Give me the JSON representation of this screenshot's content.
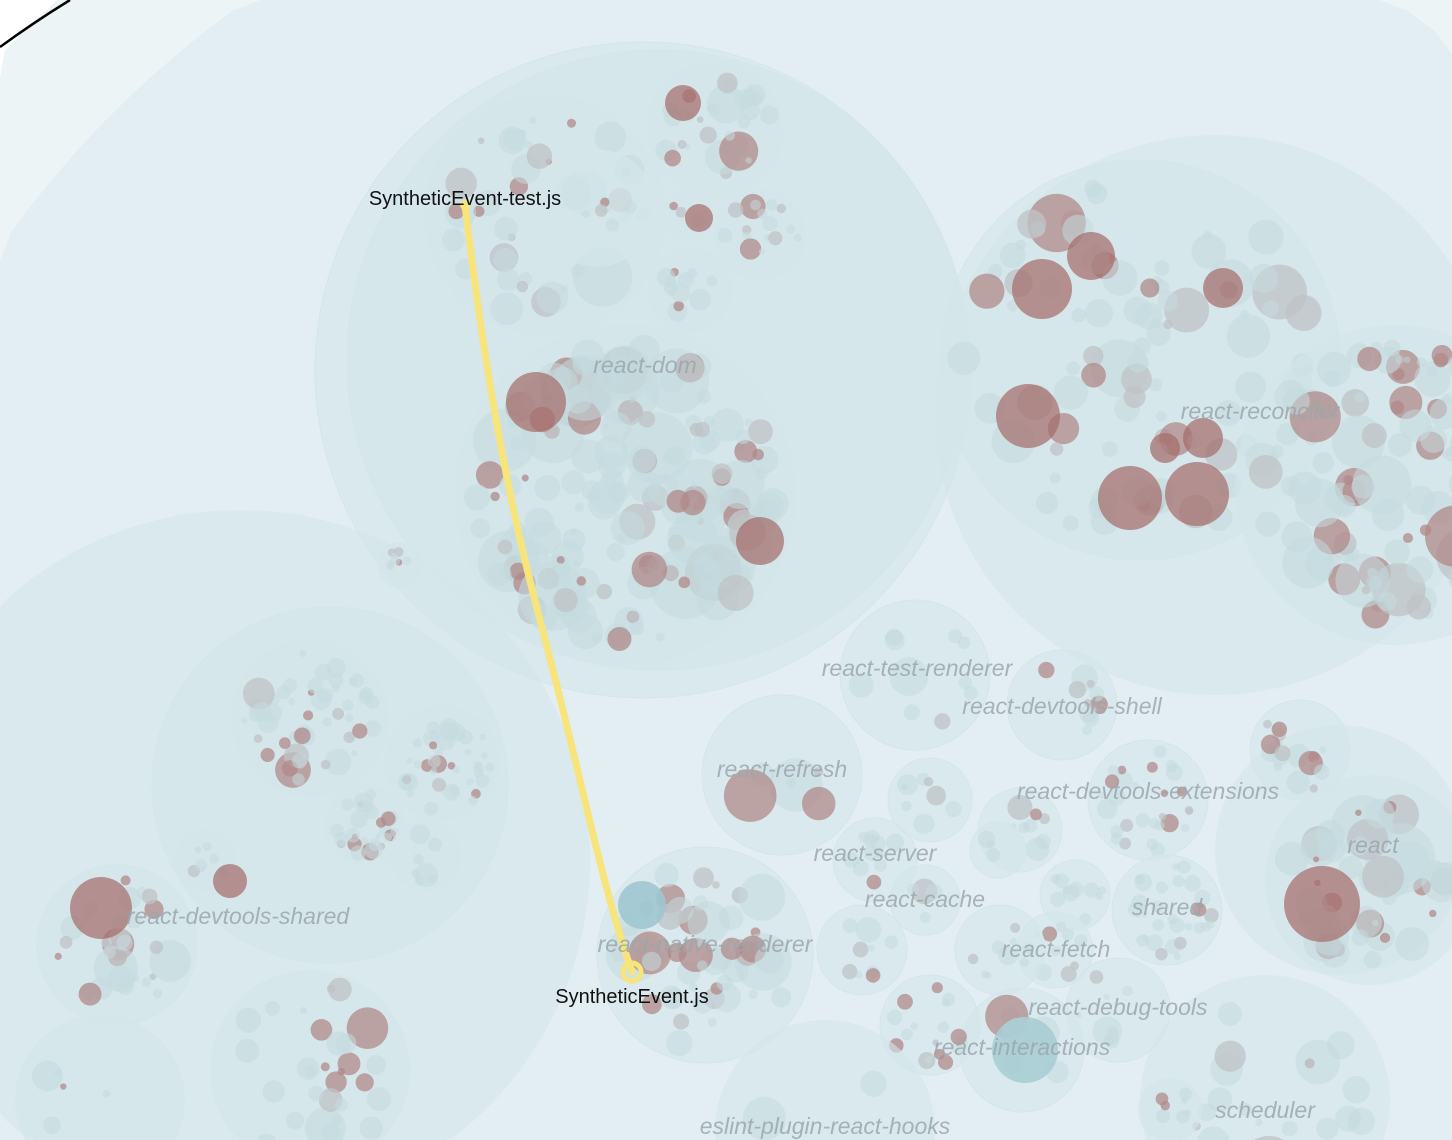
{
  "packages": [
    {
      "name": "react-dom"
    },
    {
      "name": "react-reconciler"
    },
    {
      "name": "react-test-renderer"
    },
    {
      "name": "react-devtools-shell"
    },
    {
      "name": "react-refresh"
    },
    {
      "name": "react-devtools-extensions"
    },
    {
      "name": "react"
    },
    {
      "name": "react-server"
    },
    {
      "name": "react-cache"
    },
    {
      "name": "shared"
    },
    {
      "name": "react-devtools-shared"
    },
    {
      "name": "react-native-renderer"
    },
    {
      "name": "react-fetch"
    },
    {
      "name": "react-debug-tools"
    },
    {
      "name": "react-interactions"
    },
    {
      "name": "scheduler"
    },
    {
      "name": "eslint-plugin-react-hooks"
    }
  ],
  "connection": {
    "from": "SyntheticEvent-test.js",
    "to": "SyntheticEvent.js",
    "color": "#f7e47a"
  },
  "colors": {
    "background": "#e3eef2",
    "package_fill": "#d3e6ea",
    "file_fill": "#c7dde2",
    "hot_file": "#a46b68",
    "outline": "#000000"
  }
}
